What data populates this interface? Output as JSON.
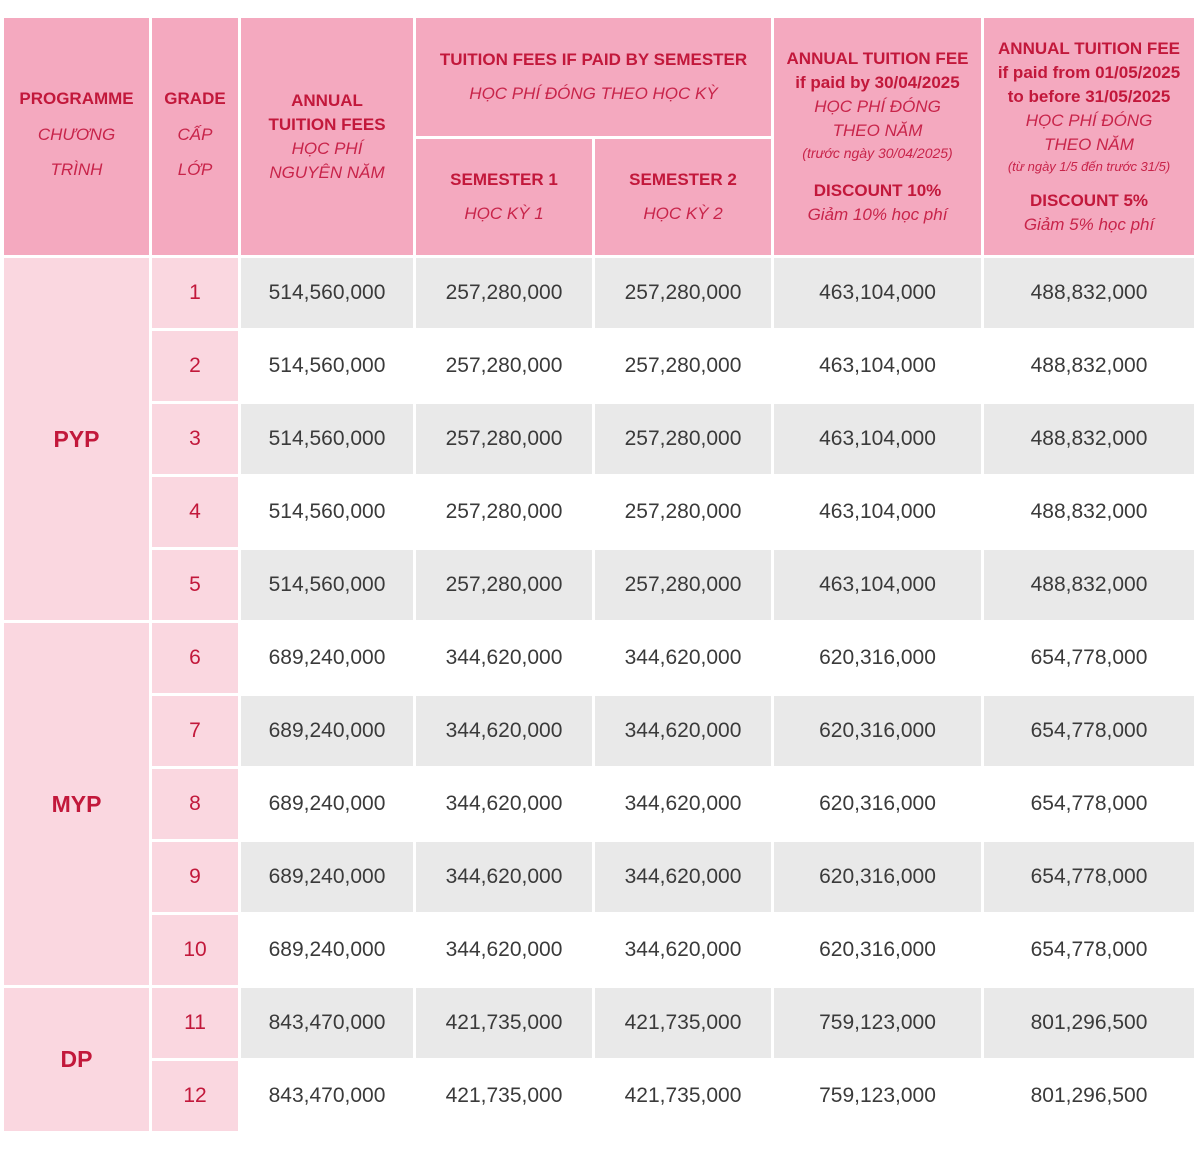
{
  "header": {
    "programme": {
      "en": "PROGRAMME",
      "vi": "CHƯƠNG TRÌNH"
    },
    "grade": {
      "en": "GRADE",
      "vi": "CẤP LỚP"
    },
    "annual": {
      "en": "ANNUAL TUITION FEES",
      "vi": "HỌC PHÍ NGUYÊN NĂM"
    },
    "semester_group": {
      "en": "TUITION FEES IF PAID BY SEMESTER",
      "vi": "HỌC PHÍ ĐÓNG THEO HỌC KỲ"
    },
    "semester1": {
      "en": "SEMESTER 1",
      "vi": "HỌC KỲ 1"
    },
    "semester2": {
      "en": "SEMESTER 2",
      "vi": "HỌC KỲ 2"
    },
    "early": {
      "title": "ANNUAL TUITION FEE",
      "condition": "if paid by 30/04/2025",
      "vi": "HỌC PHÍ ĐÓNG THEO NĂM",
      "note": "(trước ngày 30/04/2025)",
      "discount": "DISCOUNT 10%",
      "discount_vi": "Giảm 10% học phí"
    },
    "late": {
      "title": "ANNUAL TUITION FEE",
      "condition": "if paid from 01/05/2025 to before 31/05/2025",
      "vi": "HỌC PHÍ ĐÓNG THEO NĂM",
      "note": "(từ ngày 1/5 đến trước 31/5)",
      "discount": "DISCOUNT 5%",
      "discount_vi": "Giảm 5% học phí"
    }
  },
  "programmes": [
    {
      "name": "PYP",
      "rows": [
        {
          "grade": "1",
          "annual": "514,560,000",
          "sem1": "257,280,000",
          "sem2": "257,280,000",
          "early": "463,104,000",
          "late": "488,832,000"
        },
        {
          "grade": "2",
          "annual": "514,560,000",
          "sem1": "257,280,000",
          "sem2": "257,280,000",
          "early": "463,104,000",
          "late": "488,832,000"
        },
        {
          "grade": "3",
          "annual": "514,560,000",
          "sem1": "257,280,000",
          "sem2": "257,280,000",
          "early": "463,104,000",
          "late": "488,832,000"
        },
        {
          "grade": "4",
          "annual": "514,560,000",
          "sem1": "257,280,000",
          "sem2": "257,280,000",
          "early": "463,104,000",
          "late": "488,832,000"
        },
        {
          "grade": "5",
          "annual": "514,560,000",
          "sem1": "257,280,000",
          "sem2": "257,280,000",
          "early": "463,104,000",
          "late": "488,832,000"
        }
      ]
    },
    {
      "name": "MYP",
      "rows": [
        {
          "grade": "6",
          "annual": "689,240,000",
          "sem1": "344,620,000",
          "sem2": "344,620,000",
          "early": "620,316,000",
          "late": "654,778,000"
        },
        {
          "grade": "7",
          "annual": "689,240,000",
          "sem1": "344,620,000",
          "sem2": "344,620,000",
          "early": "620,316,000",
          "late": "654,778,000"
        },
        {
          "grade": "8",
          "annual": "689,240,000",
          "sem1": "344,620,000",
          "sem2": "344,620,000",
          "early": "620,316,000",
          "late": "654,778,000"
        },
        {
          "grade": "9",
          "annual": "689,240,000",
          "sem1": "344,620,000",
          "sem2": "344,620,000",
          "early": "620,316,000",
          "late": "654,778,000"
        },
        {
          "grade": "10",
          "annual": "689,240,000",
          "sem1": "344,620,000",
          "sem2": "344,620,000",
          "early": "620,316,000",
          "late": "654,778,000"
        }
      ]
    },
    {
      "name": "DP",
      "rows": [
        {
          "grade": "11",
          "annual": "843,470,000",
          "sem1": "421,735,000",
          "sem2": "421,735,000",
          "early": "759,123,000",
          "late": "801,296,500"
        },
        {
          "grade": "12",
          "annual": "843,470,000",
          "sem1": "421,735,000",
          "sem2": "421,735,000",
          "early": "759,123,000",
          "late": "801,296,500"
        }
      ]
    }
  ]
}
